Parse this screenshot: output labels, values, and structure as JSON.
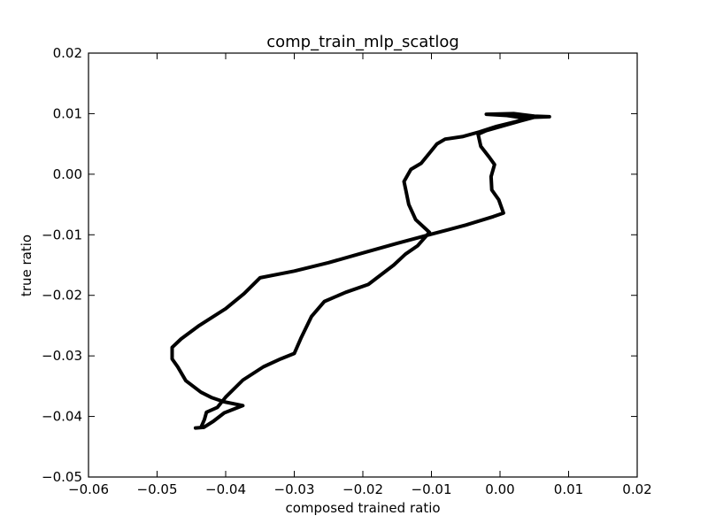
{
  "chart_data": {
    "type": "line",
    "title": "comp_train_mlp_scatlog",
    "xlabel": "composed trained ratio",
    "ylabel": "true ratio",
    "xlim": [
      -0.06,
      0.02
    ],
    "ylim": [
      -0.05,
      0.02
    ],
    "x_ticks": [
      -0.06,
      -0.05,
      -0.04,
      -0.03,
      -0.02,
      -0.01,
      0.0,
      0.01,
      0.02
    ],
    "x_tick_labels": [
      "−0.06",
      "−0.05",
      "−0.04",
      "−0.03",
      "−0.02",
      "−0.01",
      "0.00",
      "0.01",
      "0.02"
    ],
    "y_ticks": [
      0.02,
      0.01,
      0.0,
      -0.01,
      -0.02,
      -0.03,
      -0.04,
      -0.05
    ],
    "y_tick_labels": [
      "0.02",
      "0.01",
      "0.00",
      "−0.01",
      "−0.02",
      "−0.03",
      "−0.04",
      "−0.05"
    ],
    "grid": false,
    "line_color": "#000000",
    "series": [
      {
        "points": [
          [
            -0.0444,
            -0.0419
          ],
          [
            -0.0432,
            -0.0418
          ],
          [
            -0.0418,
            -0.0408
          ],
          [
            -0.0402,
            -0.0394
          ],
          [
            -0.0375,
            -0.0382
          ],
          [
            -0.0402,
            -0.0376
          ],
          [
            -0.042,
            -0.0369
          ],
          [
            -0.0436,
            -0.036
          ],
          [
            -0.0458,
            -0.0341
          ],
          [
            -0.047,
            -0.0318
          ],
          [
            -0.0478,
            -0.0305
          ],
          [
            -0.0478,
            -0.0286
          ],
          [
            -0.0465,
            -0.0272
          ],
          [
            -0.044,
            -0.0251
          ],
          [
            -0.04,
            -0.0222
          ],
          [
            -0.0373,
            -0.0197
          ],
          [
            -0.035,
            -0.0171
          ],
          [
            -0.03,
            -0.016
          ],
          [
            -0.025,
            -0.0146
          ],
          [
            -0.02,
            -0.013
          ],
          [
            -0.015,
            -0.0114
          ],
          [
            -0.01,
            -0.0099
          ],
          [
            -0.005,
            -0.0084
          ],
          [
            -0.001,
            -0.007
          ],
          [
            0.0005,
            -0.0064
          ],
          [
            -0.0002,
            -0.0042
          ],
          [
            -0.0012,
            -0.0026
          ],
          [
            -0.0013,
            -0.0004
          ],
          [
            -0.0008,
            0.0016
          ],
          [
            -0.0015,
            0.0027
          ],
          [
            -0.0028,
            0.0046
          ],
          [
            -0.0032,
            0.0066
          ],
          [
            -0.002,
            0.0072
          ],
          [
            0.0005,
            0.008
          ],
          [
            0.003,
            0.0088
          ],
          [
            0.005,
            0.0094
          ],
          [
            0.0072,
            0.0095
          ],
          [
            0.005,
            0.0096
          ],
          [
            0.002,
            0.01
          ],
          [
            -0.002,
            0.0099
          ],
          [
            0.001,
            0.0097
          ],
          [
            0.004,
            0.0092
          ],
          [
            0.002,
            0.0086
          ],
          [
            -0.0005,
            0.0079
          ],
          [
            -0.003,
            0.007
          ],
          [
            -0.0055,
            0.0062
          ],
          [
            -0.008,
            0.0058
          ],
          [
            -0.0092,
            0.005
          ],
          [
            -0.0102,
            0.0036
          ],
          [
            -0.0115,
            0.0018
          ],
          [
            -0.013,
            0.0008
          ],
          [
            -0.014,
            -0.0012
          ],
          [
            -0.0137,
            -0.0028
          ],
          [
            -0.0133,
            -0.005
          ],
          [
            -0.0123,
            -0.0075
          ],
          [
            -0.0103,
            -0.0096
          ],
          [
            -0.012,
            -0.0118
          ],
          [
            -0.0138,
            -0.0132
          ],
          [
            -0.0155,
            -0.015
          ],
          [
            -0.0192,
            -0.0182
          ],
          [
            -0.0225,
            -0.0195
          ],
          [
            -0.0256,
            -0.021
          ],
          [
            -0.0275,
            -0.0235
          ],
          [
            -0.029,
            -0.027
          ],
          [
            -0.03,
            -0.0296
          ],
          [
            -0.032,
            -0.0305
          ],
          [
            -0.0345,
            -0.0318
          ],
          [
            -0.0375,
            -0.034
          ],
          [
            -0.04,
            -0.0368
          ],
          [
            -0.0412,
            -0.0385
          ],
          [
            -0.0428,
            -0.0393
          ],
          [
            -0.0431,
            -0.0405
          ],
          [
            -0.0436,
            -0.0418
          ]
        ]
      }
    ]
  }
}
